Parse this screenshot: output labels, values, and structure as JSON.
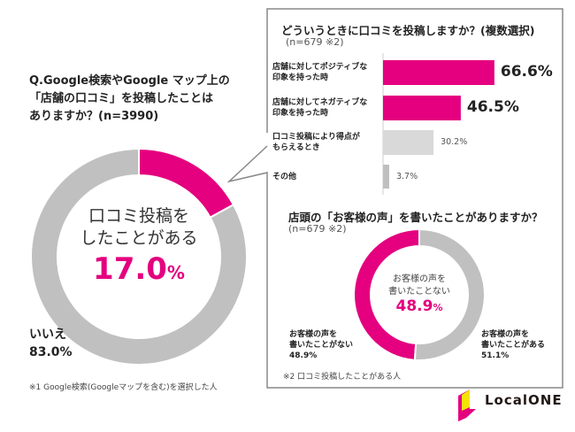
{
  "colors": {
    "accent": "#e4007f",
    "gray": "#c0c0c0",
    "light_gray": "#d9d9d9",
    "mid_gray": "#bfbfbf"
  },
  "left": {
    "question_lines": [
      "Q.Google検索やGoogle マップ上の",
      "「店舗の口コミ」を投稿したことは",
      "ありますか？(n=3990)"
    ],
    "center_label_lines": [
      "口コミ投稿を",
      "したことがある"
    ],
    "center_value": "17.0",
    "center_unit": "%",
    "no_label": "いいえ",
    "no_value": "83.0%",
    "footnote": "※1 Google検索(Googleマップを含む)を選択した人"
  },
  "chart_data": [
    {
      "type": "pie",
      "variant": "donut",
      "start": "top",
      "direction": "clockwise",
      "slices": [
        {
          "label": "口コミ投稿をしたことがある",
          "value": 17.0,
          "color": "#e4007f"
        },
        {
          "label": "いいえ",
          "value": 83.0,
          "color": "#c0c0c0"
        }
      ]
    },
    {
      "type": "bar",
      "orientation": "horizontal",
      "title": "どういうときに口コミを投稿しますか？(複数選択)",
      "subtitle": "(n=679 ※2)",
      "categories": [
        [
          "店舗に対してポジティブな",
          "印象を持った時"
        ],
        [
          "店舗に対してネガティブな",
          "印象を持った時"
        ],
        [
          "口コミ投稿により得点が",
          "もらえるとき"
        ],
        [
          "その他"
        ]
      ],
      "values": [
        66.6,
        46.5,
        30.2,
        3.7
      ],
      "value_labels": [
        "66.6%",
        "46.5%",
        "30.2%",
        "3.7%"
      ],
      "bar_colors": [
        "#e4007f",
        "#e4007f",
        "#d9d9d9",
        "#bfbfbf"
      ]
    },
    {
      "type": "pie",
      "variant": "donut",
      "title": "店頭の「お客様の声」を書いたことがありますか？",
      "subtitle": "(n=679 ※2)",
      "slices": [
        {
          "label": "お客様の声を書いたことがない",
          "value": 48.9,
          "color": "#e4007f"
        },
        {
          "label": "お客様の声を書いたことがある",
          "value": 51.1,
          "color": "#c0c0c0"
        }
      ],
      "center_label_lines": [
        "お客様の声を",
        "書いたことない"
      ],
      "center_value": "48.9",
      "center_unit": "%",
      "label_left_lines": [
        "お客様の声を",
        "書いたことがない",
        "48.9%"
      ],
      "label_right_lines": [
        "お客様の声を",
        "書いたことがある",
        "51.1%"
      ],
      "footnote": "※2 口コミ投稿したことがある人"
    }
  ],
  "logo": {
    "text": "LocalONE"
  }
}
